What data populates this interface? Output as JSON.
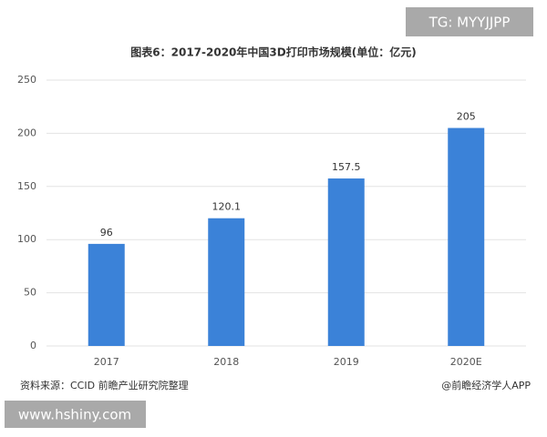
{
  "chart_data": {
    "type": "bar",
    "title": "图表6：2017-2020年中国3D打印市场规模(单位：亿元)",
    "categories": [
      "2017",
      "2018",
      "2019",
      "2020E"
    ],
    "values": [
      96,
      120.1,
      157.5,
      205
    ],
    "color": "#3b82d8",
    "ylim": [
      0,
      250
    ],
    "yticks": [
      0,
      50,
      100,
      150,
      200,
      250
    ],
    "grid": true,
    "source": "资料来源：CCID 前瞻产业研究院整理",
    "credit": "@前瞻经济学人APP"
  },
  "overlays": {
    "top_right": "TG: MYYJJPP",
    "bottom_left": "www.hshiny.com"
  }
}
